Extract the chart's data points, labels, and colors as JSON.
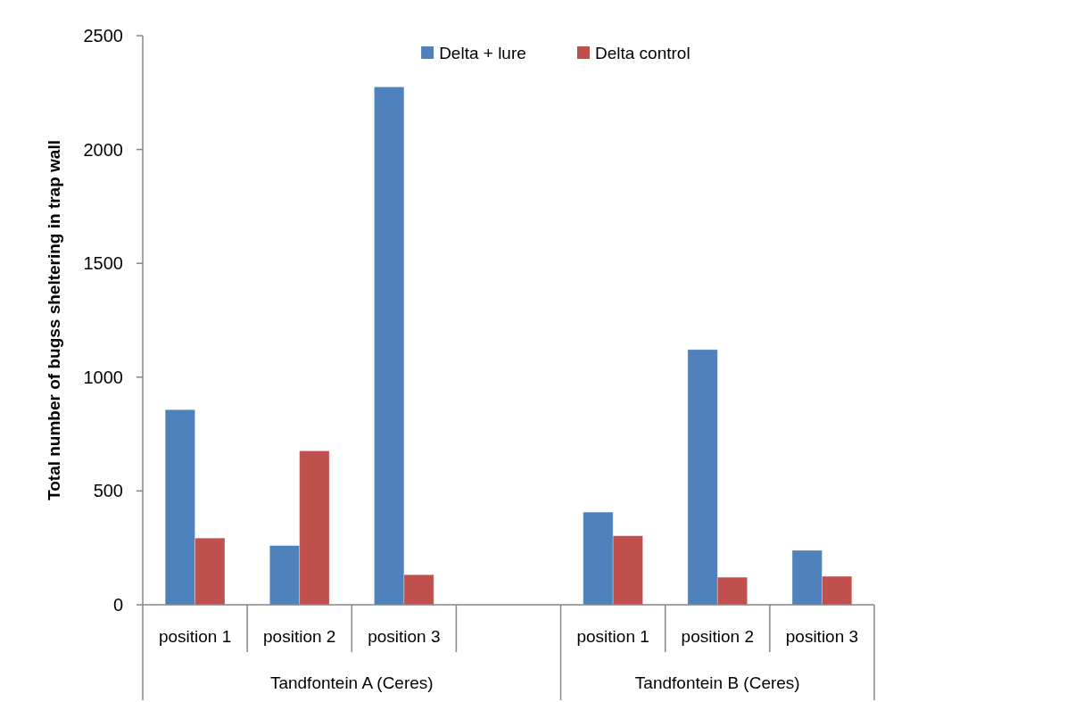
{
  "chart_data": {
    "type": "bar",
    "categories": [
      "position 1",
      "position 2",
      "position 3",
      null,
      "position 1",
      "position 2",
      "position 3"
    ],
    "series": [
      {
        "name": "Delta + lure",
        "color": "#4f81bd",
        "values": [
          857,
          260,
          2275,
          null,
          407,
          1121,
          239
        ]
      },
      {
        "name": "Delta control",
        "color": "#c0504d",
        "values": [
          293,
          676,
          132,
          null,
          303,
          121,
          125
        ]
      }
    ],
    "ylabel": "Total number of bugss sheltering in trap wall",
    "ylim": [
      0,
      2500
    ],
    "yticks": [
      0,
      500,
      1000,
      1500,
      2000,
      2500
    ],
    "legend": "top",
    "annotations": [
      "Tandfontein A (Ceres)",
      "Tandfontein B (Ceres)"
    ]
  }
}
